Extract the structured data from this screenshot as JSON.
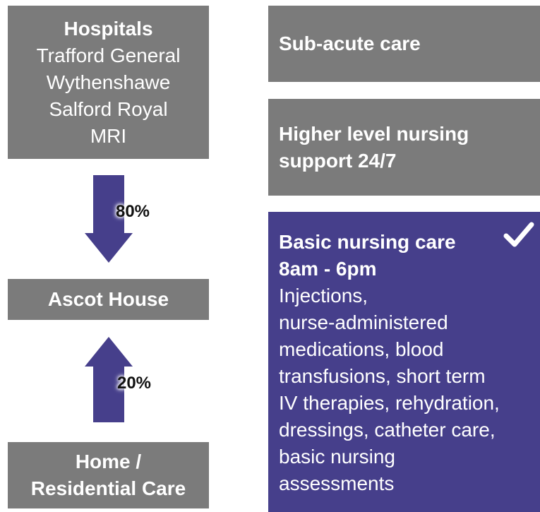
{
  "hospitals": {
    "title": "Hospitals",
    "lines": [
      "Trafford General",
      "Wythenshawe",
      "Salford Royal",
      "MRI"
    ]
  },
  "arrow_down": {
    "label": "80%"
  },
  "ascot": {
    "title": "Ascot House"
  },
  "arrow_up": {
    "label": "20%"
  },
  "home": {
    "lines": [
      "Home /",
      "Residential Care"
    ]
  },
  "care_levels": [
    {
      "title_lines": [
        "Sub-acute care"
      ]
    },
    {
      "title_lines": [
        "Higher level nursing",
        "support 24/7"
      ]
    },
    {
      "title_lines": [
        "Basic nursing care",
        "8am - 6pm"
      ],
      "lines": [
        "Injections,",
        "nurse-administered",
        "medications, blood",
        "transfusions, short term",
        "IV therapies, rehydration,",
        "dressings, catheter care,",
        "basic nursing",
        "assessments"
      ]
    }
  ]
}
